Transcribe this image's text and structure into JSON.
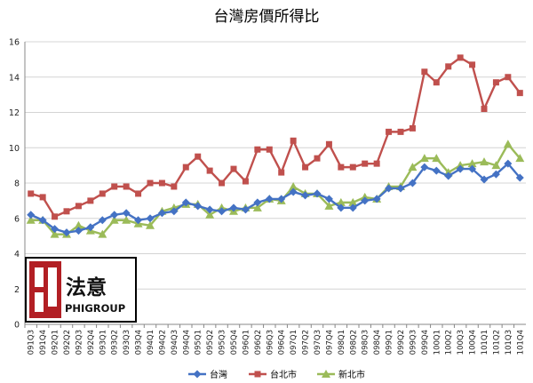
{
  "chart_data": {
    "type": "line",
    "title": "台灣房價所得比",
    "xlabel": "",
    "ylabel": "",
    "ylim": [
      0,
      16
    ],
    "yticks": [
      0,
      2,
      4,
      6,
      8,
      10,
      12,
      14,
      16
    ],
    "grid": true,
    "legend_position": "bottom",
    "categories": [
      "091Q3",
      "091Q4",
      "092Q1",
      "092Q2",
      "092Q3",
      "092Q4",
      "093Q1",
      "093Q2",
      "093Q3",
      "093Q4",
      "094Q1",
      "094Q2",
      "094Q3",
      "094Q4",
      "095Q1",
      "095Q2",
      "095Q3",
      "095Q4",
      "096Q1",
      "096Q2",
      "096Q3",
      "096Q4",
      "097Q1",
      "097Q2",
      "097Q3",
      "097Q4",
      "098Q1",
      "098Q2",
      "098Q3",
      "098Q4",
      "099Q1",
      "099Q2",
      "099Q3",
      "099Q4",
      "100Q1",
      "100Q2",
      "100Q3",
      "100Q4",
      "101Q1",
      "101Q2",
      "101Q3",
      "101Q4"
    ],
    "series": [
      {
        "name": "台灣",
        "color": "#4472C4",
        "marker": "diamond",
        "values": [
          6.2,
          5.9,
          5.4,
          5.2,
          5.3,
          5.5,
          5.9,
          6.2,
          6.3,
          5.9,
          6.0,
          6.3,
          6.4,
          6.9,
          6.7,
          6.5,
          6.4,
          6.6,
          6.5,
          6.9,
          7.1,
          7.1,
          7.5,
          7.3,
          7.4,
          7.1,
          6.6,
          6.6,
          7.0,
          7.1,
          7.7,
          7.7,
          8.0,
          8.9,
          8.7,
          8.4,
          8.8,
          8.8,
          8.2,
          8.5,
          9.1,
          8.3
        ]
      },
      {
        "name": "台北市",
        "color": "#C0504D",
        "marker": "square",
        "values": [
          7.4,
          7.2,
          6.1,
          6.4,
          6.7,
          7.0,
          7.4,
          7.8,
          7.8,
          7.4,
          8.0,
          8.0,
          7.8,
          8.9,
          9.5,
          8.7,
          8.0,
          8.8,
          8.1,
          9.9,
          9.9,
          8.6,
          10.4,
          8.9,
          9.4,
          10.2,
          8.9,
          8.9,
          9.1,
          9.1,
          10.9,
          10.9,
          11.1,
          14.3,
          13.7,
          14.6,
          15.1,
          14.7,
          12.2,
          13.7,
          14.0,
          13.1
        ]
      },
      {
        "name": "新北市",
        "color": "#9BBB59",
        "marker": "triangle",
        "values": [
          5.9,
          5.9,
          5.1,
          5.1,
          5.6,
          5.3,
          5.1,
          5.9,
          5.9,
          5.7,
          5.6,
          6.4,
          6.6,
          6.8,
          6.8,
          6.2,
          6.6,
          6.4,
          6.6,
          6.6,
          7.1,
          7.0,
          7.8,
          7.4,
          7.4,
          6.7,
          6.9,
          6.9,
          7.2,
          7.1,
          7.8,
          7.8,
          8.9,
          9.4,
          9.4,
          8.6,
          9.0,
          9.1,
          9.2,
          9.0,
          10.2,
          9.4
        ]
      }
    ]
  },
  "logo": {
    "cn_text": "法意",
    "en_text": "PHIGROUP"
  }
}
